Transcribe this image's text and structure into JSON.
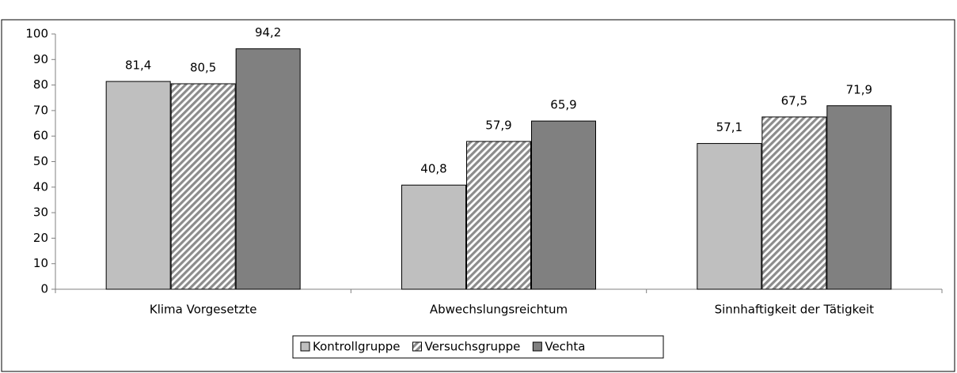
{
  "chart_data": {
    "type": "bar",
    "categories": [
      "Klima Vorgesetzte",
      "Abwechslungsreichtum",
      "Sinnhaftigkeit der Tätigkeit"
    ],
    "series": [
      {
        "name": "Kontrollgruppe",
        "color": "#bfbfbf",
        "values": [
          81.4,
          40.8,
          57.1
        ],
        "value_labels": [
          "81,4",
          "40,8",
          "57,1"
        ]
      },
      {
        "name": "Versuchsgruppe",
        "color": "#a6a6a6",
        "pattern": "hatch",
        "values": [
          80.5,
          57.9,
          67.5
        ],
        "value_labels": [
          "80,5",
          "57,9",
          "67,5"
        ]
      },
      {
        "name": "Vechta",
        "color": "#808080",
        "values": [
          94.2,
          65.9,
          71.9
        ],
        "value_labels": [
          "94,2",
          "65,9",
          "71,9"
        ]
      }
    ],
    "ylim": [
      0,
      100
    ],
    "yticks": [
      0,
      10,
      20,
      30,
      40,
      50,
      60,
      70,
      80,
      90,
      100
    ],
    "grid": false,
    "legend": "bottom"
  }
}
